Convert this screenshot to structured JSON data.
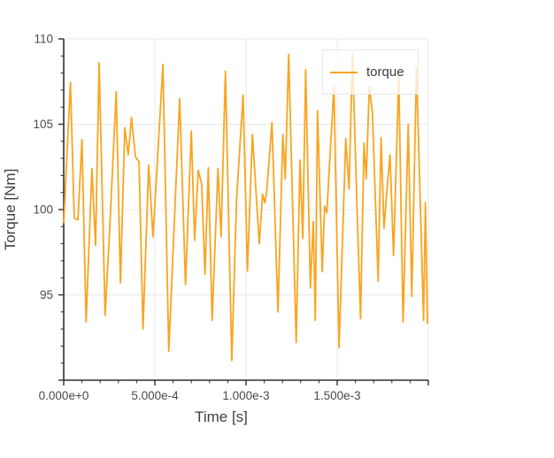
{
  "figure": {
    "background": "#ffffff"
  },
  "legend": {
    "label": "torque"
  },
  "chart_data": {
    "type": "line",
    "title": "",
    "xlabel": "Time [s]",
    "ylabel": "Torque [Nm]",
    "xlim": [
      0,
      0.002
    ],
    "ylim": [
      90,
      110
    ],
    "grid": true,
    "legend_position": "top-right-inside",
    "line_color": "#faa41f",
    "grid_color": "#e8e8e8",
    "axis_color": "#2f2f2f",
    "tick_label_color": "#4a4a4a",
    "x_major_ticks": [
      0,
      0.0005,
      0.001,
      0.0015,
      0.002
    ],
    "x_tick_labels": [
      "0.000e+0",
      "5.000e-4",
      "1.000e-3",
      "1.500e-3",
      ""
    ],
    "x_minor_step": 0.0001,
    "y_major_ticks": [
      110,
      105,
      100,
      95,
      90
    ],
    "y_tick_labels": [
      "110",
      "105",
      "100",
      "95",
      ""
    ],
    "y_minor_step": 1,
    "series": [
      {
        "name": "torque",
        "x": [
          0,
          3.7e-05,
          5.8e-05,
          7.8e-05,
          0.0001,
          0.000123,
          0.000155,
          0.000175,
          0.000194,
          0.000227,
          0.000252,
          0.000288,
          0.000311,
          0.000335,
          0.000354,
          0.000372,
          0.000393,
          0.000413,
          0.000435,
          0.000466,
          0.00049,
          0.000544,
          0.000576,
          0.000636,
          0.000668,
          0.0007,
          0.000718,
          0.000738,
          0.000757,
          0.000775,
          0.000793,
          0.000814,
          0.000846,
          0.000863,
          0.000887,
          0.000922,
          0.000948,
          0.000984,
          0.001008,
          0.001035,
          0.001073,
          0.001091,
          0.001103,
          0.001113,
          0.001142,
          0.001175,
          0.001202,
          0.001215,
          0.001234,
          0.001275,
          0.001296,
          0.001311,
          0.001327,
          0.001353,
          0.001369,
          0.00138,
          0.001392,
          0.001418,
          0.001431,
          0.001443,
          0.001482,
          0.00151,
          0.001547,
          0.001565,
          0.001584,
          0.001608,
          0.001628,
          0.001647,
          0.001659,
          0.001676,
          0.001693,
          0.001725,
          0.001741,
          0.001757,
          0.001772,
          0.00179,
          0.001809,
          0.001838,
          0.001861,
          0.00189,
          0.001909,
          0.001935,
          0.001974,
          0.001984,
          0.001995
        ],
        "y": [
          99.2,
          107.45,
          99.5,
          99.4,
          104.1,
          93.4,
          102.4,
          97.9,
          108.6,
          93.8,
          98.8,
          106.9,
          95.7,
          104.8,
          103.2,
          105.4,
          103.1,
          102.8,
          93.0,
          102.6,
          98.4,
          108.5,
          91.7,
          106.5,
          95.6,
          104.6,
          98.2,
          102.3,
          101.5,
          96.2,
          102.45,
          93.5,
          102.4,
          98.4,
          108.1,
          91.15,
          100.6,
          106.7,
          96.4,
          104.4,
          98.0,
          100.9,
          100.4,
          101.0,
          105.1,
          94.0,
          104.4,
          101.8,
          109.1,
          92.2,
          102.9,
          98.3,
          108.2,
          95.4,
          99.3,
          93.5,
          105.8,
          96.35,
          100.2,
          99.8,
          107.2,
          91.9,
          104.15,
          101.2,
          109.1,
          100.5,
          93.6,
          103.9,
          101.8,
          107.2,
          105.7,
          95.8,
          104.2,
          98.9,
          101.0,
          103.2,
          97.3,
          107.85,
          93.4,
          105.0,
          94.9,
          108.35,
          93.5,
          100.4,
          93.3
        ]
      }
    ]
  }
}
